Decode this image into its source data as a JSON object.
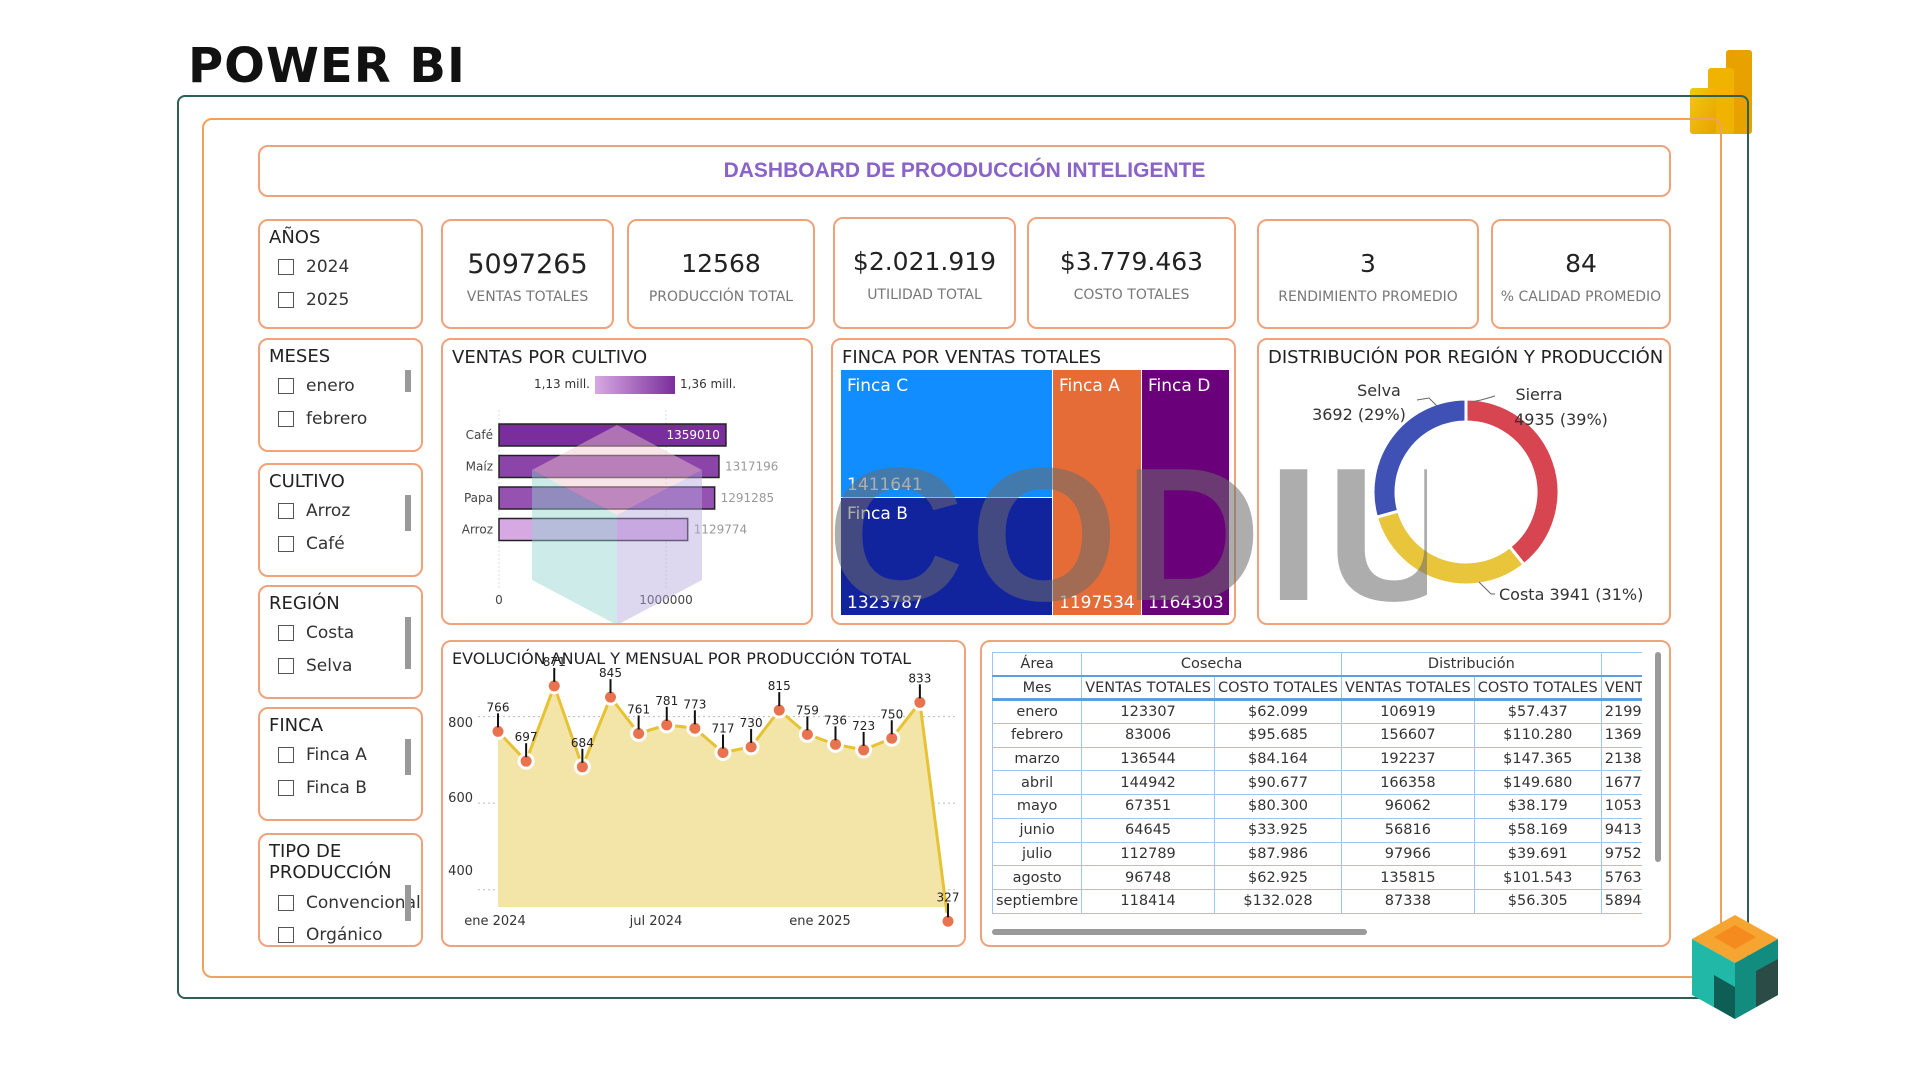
{
  "page_title": "POWER BI",
  "dashboard_title": "DASHBOARD DE PROODUCCIÓN INTELIGENTE",
  "kpis": [
    {
      "value": "5097265",
      "label": "VENTAS TOTALES"
    },
    {
      "value": "12568",
      "label": "PRODUCCIÓN TOTAL"
    },
    {
      "value": "$2.021.919",
      "label": "UTILIDAD TOTAL"
    },
    {
      "value": "$3.779.463",
      "label": "COSTO TOTALES"
    },
    {
      "value": "3",
      "label": "RENDIMIENTO PROMEDIO"
    },
    {
      "value": "84",
      "label": "% CALIDAD PROMEDIO"
    }
  ],
  "slicers": {
    "anios": {
      "title": "AÑOS",
      "items": [
        "2024",
        "2025"
      ]
    },
    "meses": {
      "title": "MESES",
      "items": [
        "enero",
        "febrero"
      ]
    },
    "cultivo": {
      "title": "CULTIVO",
      "items": [
        "Arroz",
        "Café"
      ]
    },
    "region": {
      "title": "REGIÓN",
      "items": [
        "Costa",
        "Selva"
      ]
    },
    "finca": {
      "title": "FINCA",
      "items": [
        "Finca A",
        "Finca B"
      ]
    },
    "tipo": {
      "title": "TIPO DE PRODUCCIÓN",
      "items": [
        "Convencional",
        "Orgánico"
      ]
    }
  },
  "ventas_cultivo": {
    "title": "VENTAS POR CULTIVO",
    "legend_min": "1,13 mill.",
    "legend_max": "1,36 mill.",
    "axis_labels": [
      "0",
      "1000000"
    ],
    "gradient_start": "#d7a9e3",
    "gradient_end": "#7a2e9b"
  },
  "finca_ventas": {
    "title": "FINCA POR VENTAS TOTALES",
    "cells": [
      {
        "name": "Finca C",
        "value": "1411641",
        "color": "#118dff"
      },
      {
        "name": "Finca B",
        "value": "1323787",
        "color": "#12239e"
      },
      {
        "name": "Finca A",
        "value": "1197534",
        "color": "#e66c37"
      },
      {
        "name": "Finca D",
        "value": "1164303",
        "color": "#6b007b"
      }
    ]
  },
  "distribucion": {
    "title": "DISTRIBUCIÓN POR REGIÓN Y PRODUCCIÓN",
    "label_selva_name": "Selva",
    "label_selva_value": "3692 (29%)",
    "label_sierra_name": "Sierra",
    "label_sierra_value": "4935 (39%)",
    "label_costa": "Costa 3941 (31%)"
  },
  "evolucion": {
    "title": "EVOLUCIÓN ANUAL Y MENSUAL POR PRODUCCIÓN TOTAL",
    "x_labels": [
      "ene 2024",
      "jul 2024",
      "ene 2025"
    ],
    "y_labels": [
      "800",
      "600",
      "400"
    ]
  },
  "matrix": {
    "row_header": "Área",
    "row_header2": "Mes",
    "groups": [
      "Cosecha",
      "Distribución",
      ""
    ],
    "columns": [
      "VENTAS TOTALES",
      "COSTO TOTALES",
      "VENTAS TOTALES",
      "COSTO TOTALES",
      "VENTAS TOTALES"
    ],
    "rows": [
      [
        "enero",
        "123307",
        "$62.099",
        "106919",
        "$57.437",
        "2199"
      ],
      [
        "febrero",
        "83006",
        "$95.685",
        "156607",
        "$110.280",
        "1369"
      ],
      [
        "marzo",
        "136544",
        "$84.164",
        "192237",
        "$147.365",
        "2138"
      ],
      [
        "abril",
        "144942",
        "$90.677",
        "166358",
        "$149.680",
        "1677"
      ],
      [
        "mayo",
        "67351",
        "$80.300",
        "96062",
        "$38.179",
        "1053"
      ],
      [
        "junio",
        "64645",
        "$33.925",
        "56816",
        "$58.169",
        "9413"
      ],
      [
        "julio",
        "112789",
        "$87.986",
        "97966",
        "$39.691",
        "9752"
      ],
      [
        "agosto",
        "96748",
        "$62.925",
        "135815",
        "$101.543",
        "5763"
      ],
      [
        "septiembre",
        "118414",
        "$132.028",
        "87338",
        "$56.305",
        "5894"
      ]
    ]
  },
  "watermark_text": "CODIUM",
  "chart_data": [
    {
      "type": "bar",
      "title": "VENTAS POR CULTIVO",
      "orientation": "horizontal",
      "categories": [
        "Café",
        "Maíz",
        "Papa",
        "Arroz"
      ],
      "values": [
        1359010,
        1317196,
        1291285,
        1129774
      ],
      "xlim": [
        0,
        1400000
      ]
    },
    {
      "type": "treemap",
      "title": "FINCA POR VENTAS TOTALES",
      "categories": [
        "Finca C",
        "Finca B",
        "Finca A",
        "Finca D"
      ],
      "values": [
        1411641,
        1323787,
        1197534,
        1164303
      ]
    },
    {
      "type": "pie",
      "title": "DISTRIBUCIÓN POR REGIÓN Y PRODUCCIÓN",
      "categories": [
        "Sierra",
        "Costa",
        "Selva"
      ],
      "values": [
        4935,
        3941,
        3692
      ],
      "colors": [
        "#d64550",
        "#e8c53a",
        "#3f51b5"
      ]
    },
    {
      "type": "area",
      "title": "EVOLUCIÓN ANUAL Y MENSUAL POR PRODUCCIÓN TOTAL",
      "values": [
        766,
        697,
        871,
        684,
        845,
        761,
        781,
        773,
        717,
        730,
        815,
        759,
        736,
        723,
        750,
        833,
        327
      ],
      "ylim": [
        360,
        880
      ]
    }
  ]
}
